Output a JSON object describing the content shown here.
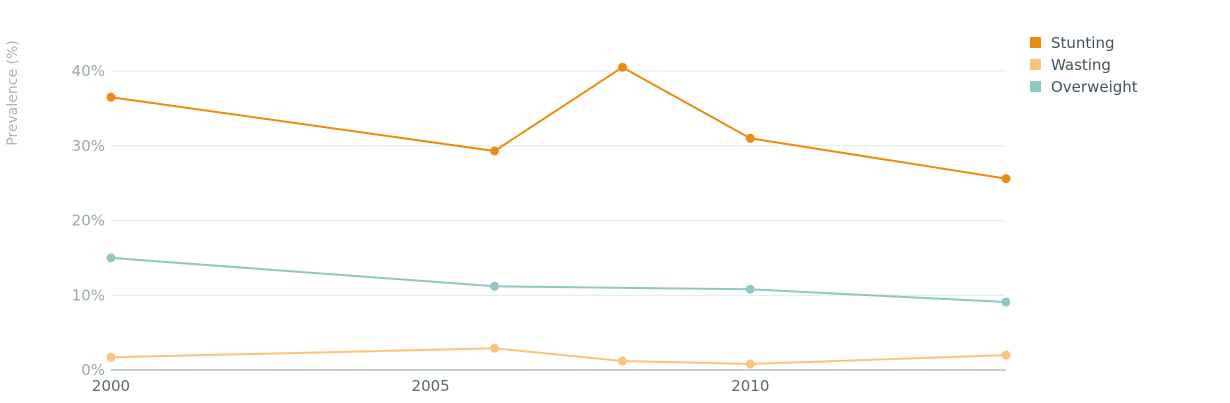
{
  "chart_data": {
    "type": "line",
    "title": "",
    "xlabel": "",
    "ylabel": "Prevalence (%)",
    "xlim": [
      2000,
      2014
    ],
    "ylim": [
      0,
      40
    ],
    "yticks": [
      0,
      10,
      20,
      30,
      40
    ],
    "ytick_labels": [
      "0%",
      "10%",
      "20%",
      "30%",
      "40%"
    ],
    "xticks": [
      2000,
      2005,
      2010
    ],
    "xtick_labels": [
      "2000",
      "2005",
      "2010"
    ],
    "grid": true,
    "legend_position": "top-right",
    "series": [
      {
        "name": "Stunting",
        "color": "#ec8c0e",
        "points": [
          {
            "x": 2000,
            "y": 36.5
          },
          {
            "x": 2006,
            "y": 29.3
          },
          {
            "x": 2008,
            "y": 40.5
          },
          {
            "x": 2010,
            "y": 31.0
          },
          {
            "x": 2014,
            "y": 25.6
          }
        ]
      },
      {
        "name": "Wasting",
        "color": "#fac57a",
        "points": [
          {
            "x": 2000,
            "y": 1.7
          },
          {
            "x": 2006,
            "y": 2.9
          },
          {
            "x": 2008,
            "y": 1.2
          },
          {
            "x": 2010,
            "y": 0.8
          },
          {
            "x": 2014,
            "y": 2.0
          }
        ]
      },
      {
        "name": "Overweight",
        "color": "#8fc8c3",
        "points": [
          {
            "x": 2000,
            "y": 15.0
          },
          {
            "x": 2006,
            "y": 11.2
          },
          {
            "x": 2010,
            "y": 10.8
          },
          {
            "x": 2014,
            "y": 9.1
          }
        ]
      }
    ]
  }
}
